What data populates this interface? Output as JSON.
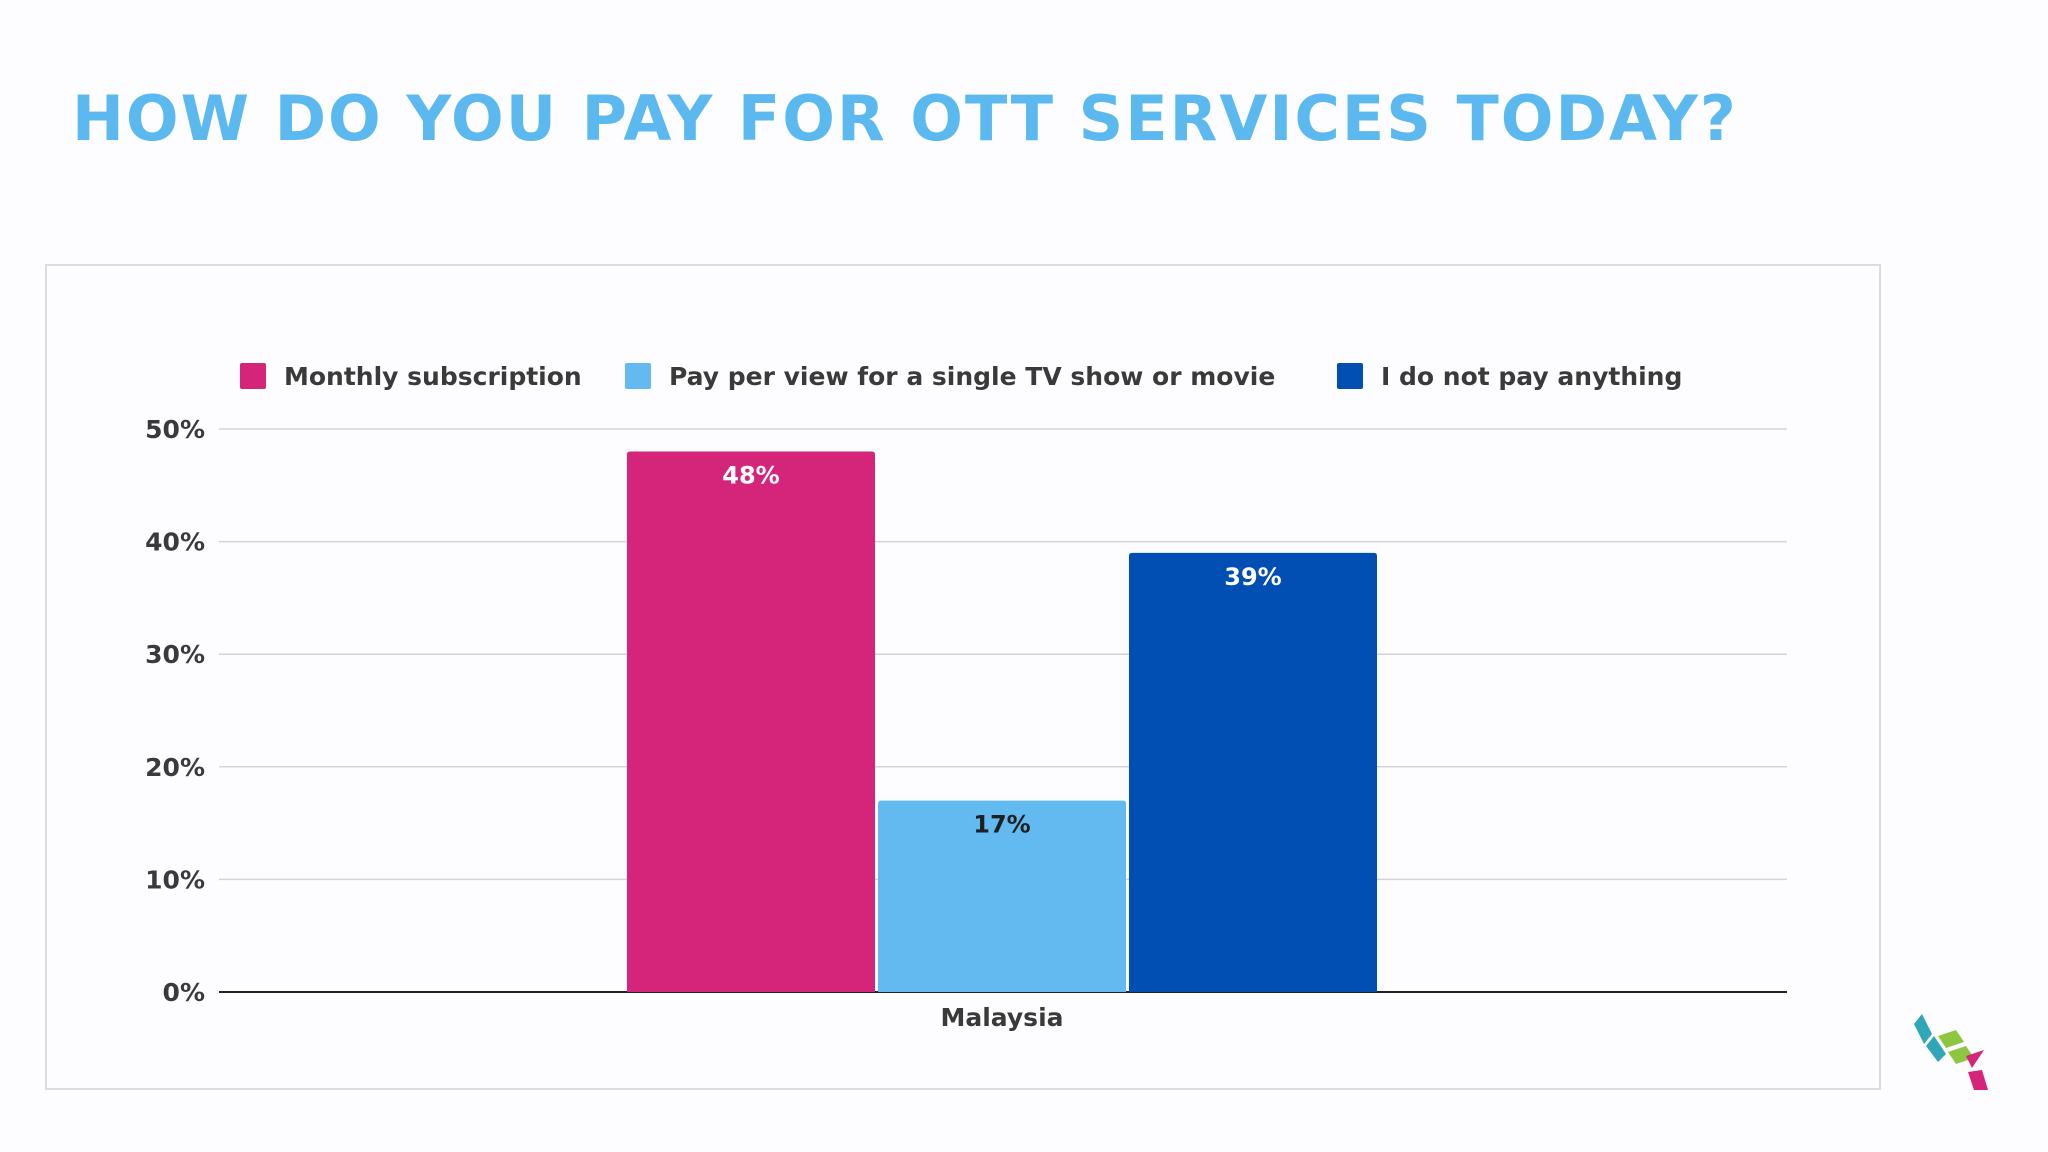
{
  "title": "HOW DO YOU PAY FOR OTT SERVICES TODAY?",
  "chart_data": {
    "type": "bar",
    "categories": [
      "Malaysia"
    ],
    "series": [
      {
        "name": "Monthly subscription",
        "values": [
          48
        ],
        "color": "#d4257a",
        "label": "48%",
        "label_color": "#ffffff"
      },
      {
        "name": "Pay per view for a single TV show or movie",
        "values": [
          17
        ],
        "color": "#62baf0",
        "label": "17%",
        "label_color": "#1f1f1f"
      },
      {
        "name": "I do not pay anything",
        "values": [
          39
        ],
        "color": "#014fb3",
        "label": "39%",
        "label_color": "#ffffff"
      }
    ],
    "ylim": [
      0,
      50
    ],
    "yticks": [
      "0%",
      "10%",
      "20%",
      "30%",
      "40%",
      "50%"
    ],
    "ytick_values": [
      0,
      10,
      20,
      30,
      40,
      50
    ],
    "grid": true,
    "legend_position": "top",
    "xlabel": "",
    "ylabel": ""
  },
  "logo": {
    "name": "brand-logo",
    "colors": [
      "#2fa7b8",
      "#8dc63f",
      "#d4257a"
    ]
  }
}
